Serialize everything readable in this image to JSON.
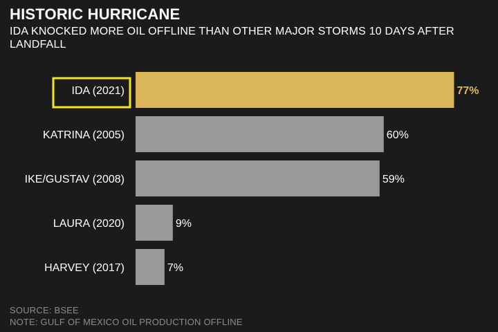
{
  "header": {
    "title": "HISTORIC HURRICANE",
    "subtitle": "IDA KNOCKED MORE OIL OFFLINE THAN OTHER MAJOR STORMS 10 DAYS AFTER LANDFALL"
  },
  "footer": {
    "source": "SOURCE: BSEE",
    "note": "NOTE: GULF OF MEXICO OIL PRODUCTION OFFLINE"
  },
  "colors": {
    "background": "#1b1b1b",
    "highlight": "#dcb75a",
    "bar": "#999999",
    "highlight_box": "#f5e51e"
  },
  "chart_data": {
    "type": "bar",
    "orientation": "horizontal",
    "categories": [
      "IDA (2021)",
      "KATRINA (2005)",
      "IKE/GUSTAV (2008)",
      "LAURA (2020)",
      "HARVEY (2017)"
    ],
    "values": [
      77,
      60,
      59,
      9,
      7
    ],
    "value_labels": [
      "77%",
      "60%",
      "59%",
      "9%",
      "7%"
    ],
    "highlight_index": 0,
    "xlim": [
      0,
      100
    ],
    "grid": false
  }
}
